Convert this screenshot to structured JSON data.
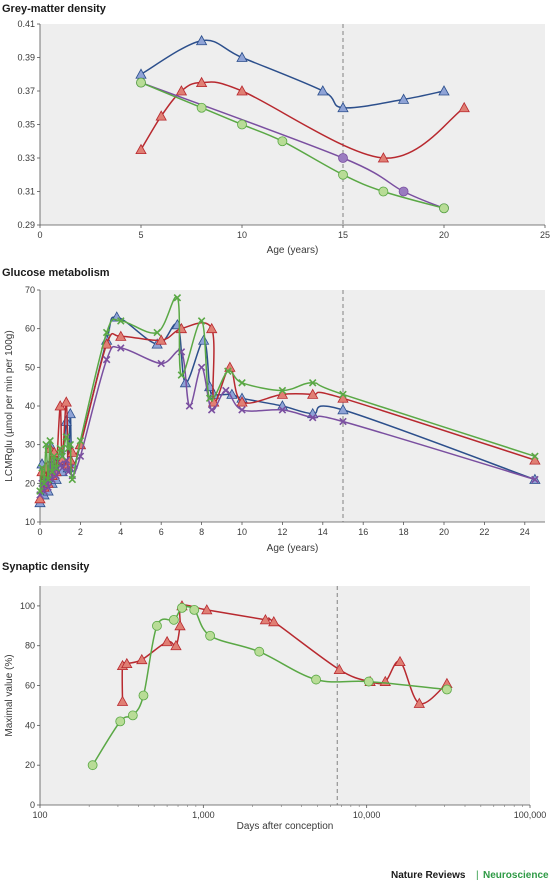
{
  "colors": {
    "blue": "#2c4f8c",
    "red": "#b8292f",
    "purple": "#7a4fa0",
    "green": "#5aa845",
    "blue_fill": "#8fa3d6",
    "red_fill": "#e07f74",
    "purple_fill": "#9a7cc0",
    "green_fill": "#b8dc96"
  },
  "credit": {
    "left": "Nature Reviews",
    "sep": "|",
    "right": "Neuroscience"
  },
  "chart_data": [
    {
      "type": "line",
      "title": "Grey-matter density",
      "xlabel": "Age (years)",
      "ylabel": "",
      "xlim": [
        0,
        25
      ],
      "ylim": [
        0.29,
        0.41
      ],
      "xticks": [
        "0",
        "5",
        "10",
        "15",
        "20",
        "25"
      ],
      "yticks": [
        "0.29",
        "0.31",
        "0.33",
        "0.35",
        "0.37",
        "0.39",
        "0.41"
      ],
      "vline": 15,
      "series": [
        {
          "color": "blue",
          "marker": "triangle",
          "points": [
            [
              5,
              0.38
            ],
            [
              8,
              0.4
            ],
            [
              10,
              0.39
            ],
            [
              14,
              0.37
            ],
            [
              15,
              0.36
            ],
            [
              18,
              0.365
            ],
            [
              20,
              0.37
            ]
          ]
        },
        {
          "color": "red",
          "marker": "triangle",
          "points": [
            [
              5,
              0.335
            ],
            [
              6,
              0.355
            ],
            [
              7,
              0.37
            ],
            [
              8,
              0.375
            ],
            [
              10,
              0.37
            ],
            [
              17,
              0.33
            ],
            [
              21,
              0.36
            ]
          ]
        },
        {
          "color": "purple",
          "marker": "circle",
          "points": [
            [
              5,
              0.375
            ],
            [
              15,
              0.33
            ],
            [
              18,
              0.31
            ],
            [
              20,
              0.3
            ]
          ]
        },
        {
          "color": "green",
          "marker": "circle",
          "points": [
            [
              5,
              0.375
            ],
            [
              8,
              0.36
            ],
            [
              10,
              0.35
            ],
            [
              12,
              0.34
            ],
            [
              15,
              0.32
            ],
            [
              17,
              0.31
            ],
            [
              20,
              0.3
            ]
          ]
        }
      ]
    },
    {
      "type": "line",
      "title": "Glucose metabolism",
      "xlabel": "Age (years)",
      "ylabel": "LCMRglu (µmol per min per 100g)",
      "xlim": [
        0,
        25
      ],
      "ylim": [
        10,
        70
      ],
      "xticks": [
        "0",
        "2",
        "4",
        "6",
        "8",
        "10",
        "12",
        "14",
        "16",
        "18",
        "20",
        "22",
        "24"
      ],
      "yticks": [
        "10",
        "20",
        "30",
        "40",
        "50",
        "60",
        "70"
      ],
      "vline": 15,
      "series": [
        {
          "color": "blue",
          "marker": "triangle",
          "points": [
            [
              0,
              15
            ],
            [
              0.1,
              25
            ],
            [
              0.2,
              17
            ],
            [
              0.3,
              22
            ],
            [
              0.4,
              18
            ],
            [
              0.5,
              30
            ],
            [
              0.6,
              20
            ],
            [
              0.7,
              26
            ],
            [
              0.8,
              21
            ],
            [
              1.0,
              27
            ],
            [
              1.1,
              23
            ],
            [
              1.3,
              36
            ],
            [
              1.4,
              24
            ],
            [
              1.5,
              38
            ],
            [
              1.6,
              25
            ],
            [
              2.0,
              30
            ],
            [
              3.3,
              57
            ],
            [
              3.8,
              63
            ],
            [
              5.8,
              56
            ],
            [
              6.8,
              61
            ],
            [
              7.2,
              46
            ],
            [
              8.1,
              57
            ],
            [
              8.4,
              45
            ],
            [
              8.6,
              43
            ],
            [
              9.5,
              43
            ],
            [
              10,
              42
            ],
            [
              12,
              40
            ],
            [
              13.5,
              38
            ],
            [
              15,
              39
            ],
            [
              24.5,
              21
            ]
          ]
        },
        {
          "color": "red",
          "marker": "triangle",
          "points": [
            [
              0,
              16
            ],
            [
              0.1,
              23
            ],
            [
              0.2,
              19
            ],
            [
              0.3,
              24
            ],
            [
              0.4,
              20
            ],
            [
              0.5,
              29
            ],
            [
              0.6,
              22
            ],
            [
              0.7,
              28
            ],
            [
              0.8,
              23
            ],
            [
              1.0,
              40
            ],
            [
              1.1,
              26
            ],
            [
              1.3,
              41
            ],
            [
              1.4,
              25
            ],
            [
              1.5,
              26
            ],
            [
              1.6,
              28
            ],
            [
              2.0,
              30
            ],
            [
              3.3,
              56
            ],
            [
              4.0,
              58
            ],
            [
              6.0,
              57
            ],
            [
              7.0,
              60
            ],
            [
              8.5,
              60
            ],
            [
              8.6,
              41
            ],
            [
              9.4,
              50
            ],
            [
              10,
              41
            ],
            [
              12,
              43
            ],
            [
              13.5,
              43
            ],
            [
              15,
              42
            ],
            [
              24.5,
              26
            ]
          ]
        },
        {
          "color": "purple",
          "marker": "cross",
          "points": [
            [
              0,
              17
            ],
            [
              0.1,
              20
            ],
            [
              0.2,
              18
            ],
            [
              0.3,
              21
            ],
            [
              0.4,
              19
            ],
            [
              0.5,
              25
            ],
            [
              0.6,
              21
            ],
            [
              0.7,
              24
            ],
            [
              0.8,
              22
            ],
            [
              1.0,
              25
            ],
            [
              1.1,
              24
            ],
            [
              1.3,
              26
            ],
            [
              1.4,
              23
            ],
            [
              1.5,
              24
            ],
            [
              1.6,
              22
            ],
            [
              2.0,
              27
            ],
            [
              3.3,
              52
            ],
            [
              4.0,
              55
            ],
            [
              6.0,
              51
            ],
            [
              7.0,
              54
            ],
            [
              7.4,
              40
            ],
            [
              8.0,
              50
            ],
            [
              8.5,
              39
            ],
            [
              9.2,
              44
            ],
            [
              10,
              39
            ],
            [
              12,
              39
            ],
            [
              13.5,
              37
            ],
            [
              15,
              36
            ],
            [
              24.5,
              21
            ]
          ]
        },
        {
          "color": "green",
          "marker": "cross",
          "points": [
            [
              0,
              18
            ],
            [
              0.1,
              24
            ],
            [
              0.2,
              20
            ],
            [
              0.3,
              30
            ],
            [
              0.4,
              21
            ],
            [
              0.5,
              31
            ],
            [
              0.6,
              23
            ],
            [
              0.7,
              27
            ],
            [
              0.8,
              24
            ],
            [
              1.0,
              29
            ],
            [
              1.1,
              27
            ],
            [
              1.3,
              32
            ],
            [
              1.4,
              29
            ],
            [
              1.5,
              30
            ],
            [
              1.6,
              21
            ],
            [
              2.0,
              31
            ],
            [
              3.3,
              59
            ],
            [
              4.0,
              62
            ],
            [
              5.8,
              59
            ],
            [
              6.8,
              68
            ],
            [
              7.0,
              48
            ],
            [
              8.0,
              62
            ],
            [
              8.4,
              42
            ],
            [
              9.3,
              49
            ],
            [
              10,
              46
            ],
            [
              12,
              44
            ],
            [
              13.5,
              46
            ],
            [
              15,
              43
            ],
            [
              24.5,
              27
            ]
          ]
        }
      ]
    },
    {
      "type": "line",
      "title": "Synaptic density",
      "xlabel": "Days after conception",
      "ylabel": "Maximal value (%)",
      "xscale": "log",
      "xlim": [
        100,
        100000
      ],
      "ylim": [
        0,
        110
      ],
      "xticks": [
        "100",
        "1,000",
        "10,000",
        "100,000"
      ],
      "xtick_values": [
        100,
        1000,
        10000,
        100000
      ],
      "yticks": [
        "0",
        "20",
        "40",
        "60",
        "80",
        "100"
      ],
      "vline": 6600,
      "series": [
        {
          "color": "red",
          "marker": "triangle",
          "points": [
            [
              320,
              52
            ],
            [
              320,
              70
            ],
            [
              340,
              71
            ],
            [
              420,
              73
            ],
            [
              600,
              82
            ],
            [
              680,
              80
            ],
            [
              720,
              90
            ],
            [
              740,
              100
            ],
            [
              1050,
              98
            ],
            [
              2400,
              93
            ],
            [
              2700,
              92
            ],
            [
              6800,
              68
            ],
            [
              10500,
              62
            ],
            [
              13000,
              62
            ],
            [
              16000,
              72
            ],
            [
              21000,
              51
            ],
            [
              31000,
              61
            ]
          ]
        },
        {
          "color": "green",
          "marker": "circle",
          "points": [
            [
              210,
              20
            ],
            [
              310,
              42
            ],
            [
              370,
              45
            ],
            [
              430,
              55
            ],
            [
              520,
              90
            ],
            [
              660,
              93
            ],
            [
              740,
              99
            ],
            [
              880,
              98
            ],
            [
              1100,
              85
            ],
            [
              2200,
              77
            ],
            [
              4900,
              63
            ],
            [
              10300,
              62
            ],
            [
              31000,
              58
            ]
          ]
        }
      ]
    }
  ]
}
